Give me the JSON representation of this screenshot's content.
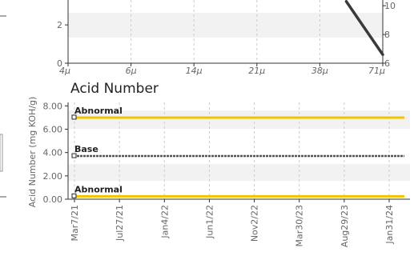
{
  "colors": {
    "band": "#f2f2f2",
    "axis": "#333333",
    "grid": "#cccccc",
    "trend_line": "#3a3a3a",
    "abnormal": "#f2c400",
    "base": "#555555",
    "tick_text": "#666666"
  },
  "chart_data": [
    {
      "type": "line",
      "title": "",
      "x_tick_labels": [
        "4μ",
        "6μ",
        "14μ",
        "21μ",
        "38μ",
        "71μ"
      ],
      "y_left_ticks": [
        "0",
        "2"
      ],
      "y_right_ticks": [
        "6",
        "8",
        "10"
      ],
      "y_left_range": [
        0,
        3.3
      ],
      "y_right_range": [
        6,
        10.4
      ],
      "grid": "vertical dashed",
      "series": [
        {
          "x": [
            "38μ",
            "71μ"
          ],
          "y_right": [
            10.3,
            6.6
          ]
        }
      ]
    },
    {
      "type": "line",
      "title": "Acid Number",
      "ylabel": "Acid Number (mg KOH/g)",
      "ylim": [
        0,
        8.3
      ],
      "y_ticks": [
        "0.00",
        "2.00",
        "4.00",
        "6.00",
        "8.00"
      ],
      "x_tick_labels": [
        "Mar7/21",
        "Jul27/21",
        "Jan4/22",
        "Jun1/22",
        "Nov2/22",
        "Mar30/23",
        "Aug29/23",
        "Jan31/24"
      ],
      "grid": "vertical dashed",
      "legend": "none",
      "series": [
        {
          "name": "Abnormal",
          "value": 7.0,
          "color": "#f2c400"
        },
        {
          "name": "Base",
          "value": 3.7,
          "color": "#555555"
        },
        {
          "name": "Abnormal",
          "value": 0.25,
          "color": "#f2c400"
        }
      ]
    }
  ]
}
